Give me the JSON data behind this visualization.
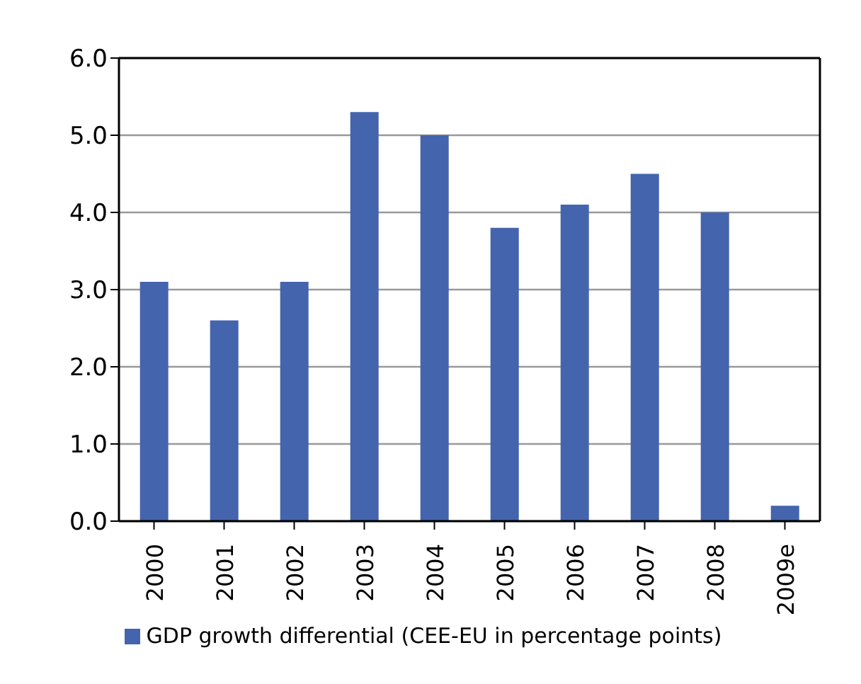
{
  "chart_data": {
    "type": "bar",
    "categories": [
      "2000",
      "2001",
      "2002",
      "2003",
      "2004",
      "2005",
      "2006",
      "2007",
      "2008",
      "2009e"
    ],
    "series": [
      {
        "name": "GDP growth differential (CEE-EU in percentage points)",
        "color": "#4464ad",
        "values": [
          3.1,
          2.6,
          3.1,
          5.3,
          5.0,
          3.8,
          4.1,
          4.5,
          4.0,
          0.2
        ]
      }
    ],
    "ylim": [
      0,
      6
    ],
    "yticks": [
      {
        "value": 0,
        "label": "0.0"
      },
      {
        "value": 1,
        "label": "1.0"
      },
      {
        "value": 2,
        "label": "2.0"
      },
      {
        "value": 3,
        "label": "3.0"
      },
      {
        "value": 4,
        "label": "4.0"
      },
      {
        "value": 5,
        "label": "5.0"
      },
      {
        "value": 6,
        "label": "6.0"
      }
    ],
    "grid": "y",
    "legend": "bottom"
  }
}
